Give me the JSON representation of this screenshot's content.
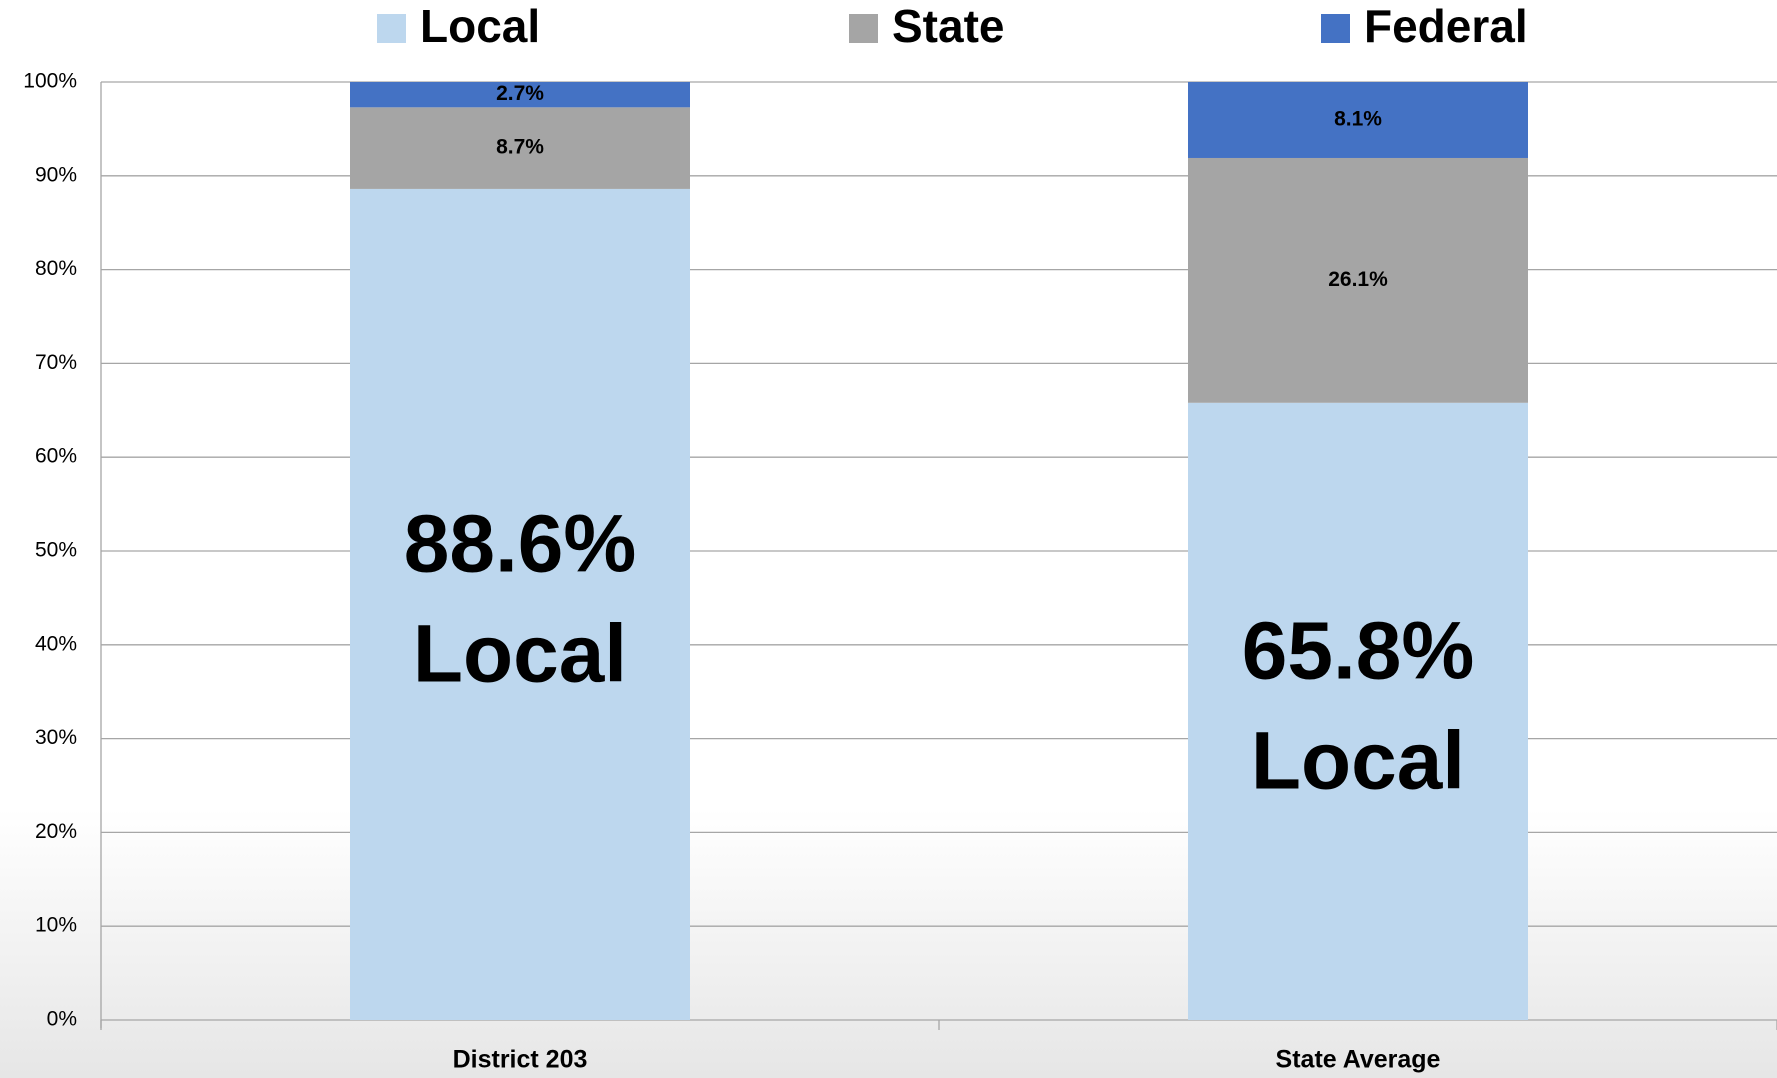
{
  "chart_data": {
    "type": "stacked_bar",
    "categories": [
      "District 203",
      "State Average"
    ],
    "series": [
      {
        "name": "Local",
        "color": "#bdd7ee",
        "values": [
          88.6,
          65.8
        ],
        "value_labels": [
          "88.6%",
          "65.8%"
        ]
      },
      {
        "name": "State",
        "color": "#a5a5a5",
        "values": [
          8.7,
          26.1
        ],
        "value_labels": [
          "8.7%",
          "26.1%"
        ]
      },
      {
        "name": "Federal",
        "color": "#4472c4",
        "values": [
          2.7,
          8.1
        ],
        "value_labels": [
          "2.7%",
          "8.1%"
        ]
      }
    ],
    "ylim": [
      0,
      100
    ],
    "yticks": [
      {
        "value": 0,
        "label": "0%"
      },
      {
        "value": 10,
        "label": "10%"
      },
      {
        "value": 20,
        "label": "20%"
      },
      {
        "value": 30,
        "label": "30%"
      },
      {
        "value": 40,
        "label": "40%"
      },
      {
        "value": 50,
        "label": "50%"
      },
      {
        "value": 60,
        "label": "60%"
      },
      {
        "value": 70,
        "label": "70%"
      },
      {
        "value": 80,
        "label": "80%"
      },
      {
        "value": 90,
        "label": "90%"
      },
      {
        "value": 100,
        "label": "100%"
      }
    ],
    "grid": true,
    "legend": "top"
  }
}
